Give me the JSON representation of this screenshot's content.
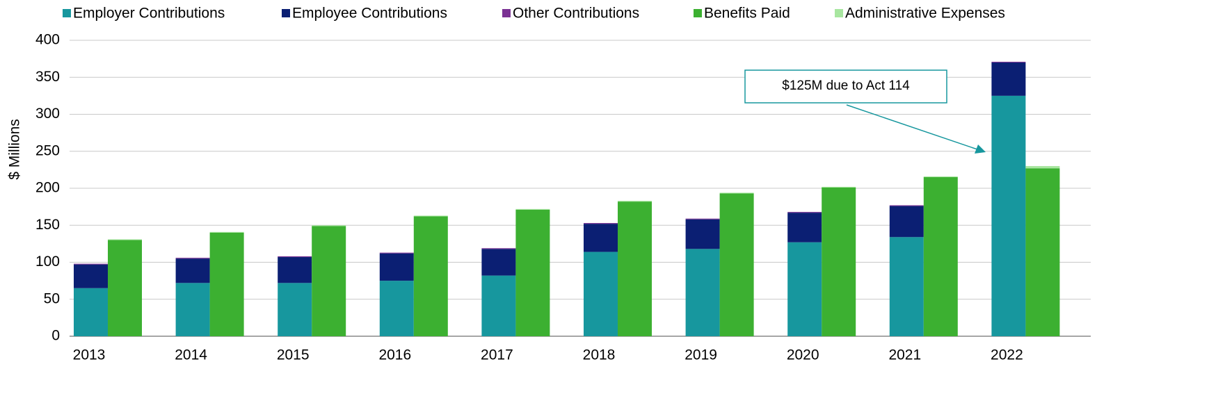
{
  "chart_data": {
    "type": "bar",
    "y_label": "$ Millions",
    "categories": [
      "2013",
      "2014",
      "2015",
      "2016",
      "2017",
      "2018",
      "2019",
      "2020",
      "2021",
      "2022"
    ],
    "series": [
      {
        "name": "Employer Contributions",
        "color": "#17979e",
        "stack": 0,
        "values": [
          65,
          72,
          72,
          75,
          82,
          114,
          118,
          127,
          134,
          325
        ]
      },
      {
        "name": "Employee Contributions",
        "color": "#0b1f73",
        "stack": 0,
        "values": [
          32,
          33,
          35,
          37,
          36,
          38,
          40,
          40,
          42,
          45
        ]
      },
      {
        "name": "Other Contributions",
        "color": "#7b3294",
        "stack": 0,
        "values": [
          1,
          1,
          1,
          1,
          1,
          1,
          1,
          1,
          1,
          1
        ]
      },
      {
        "name": "Benefits Paid",
        "color": "#3cb031",
        "stack": 1,
        "values": [
          130,
          140,
          149,
          162,
          171,
          182,
          193,
          201,
          215,
          227
        ]
      },
      {
        "name": "Administrative Expenses",
        "color": "#a8e6a0",
        "stack": 1,
        "values": [
          1,
          1,
          1,
          1,
          1,
          1,
          1,
          1,
          1,
          3
        ]
      }
    ],
    "ylim": [
      0,
      400
    ],
    "yticks": [
      0,
      50,
      100,
      150,
      200,
      250,
      300,
      350,
      400
    ],
    "grid": true,
    "legend": "top",
    "annotation": {
      "text": "$125M due to Act 114",
      "color": "#17979e"
    }
  }
}
